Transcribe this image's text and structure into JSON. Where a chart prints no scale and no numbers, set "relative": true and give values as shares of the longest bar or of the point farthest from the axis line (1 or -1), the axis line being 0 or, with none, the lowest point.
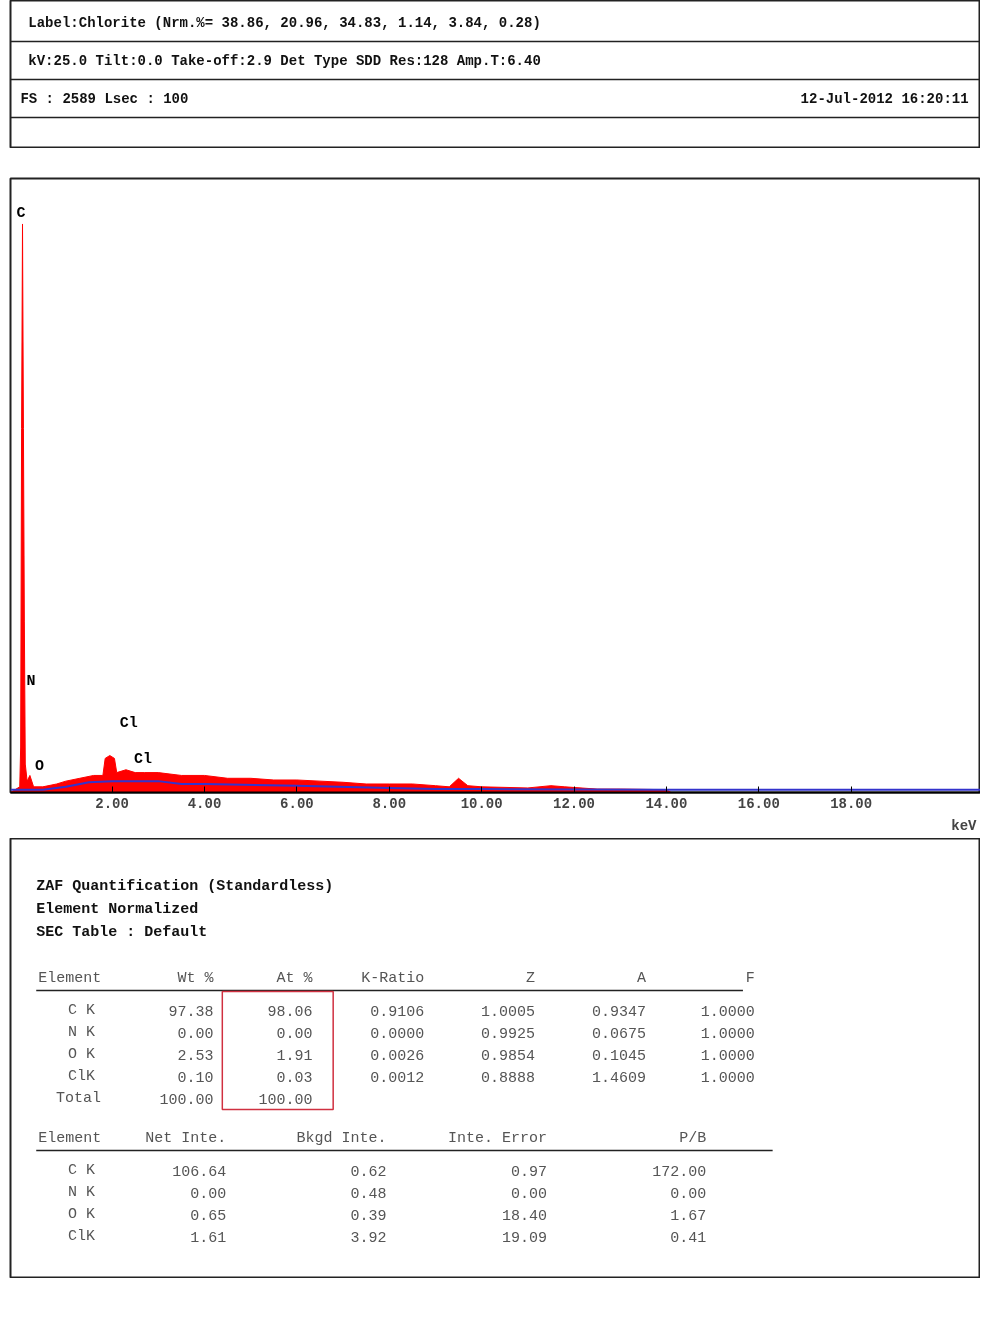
{
  "chart_data": {
    "type": "area",
    "relative": true,
    "title": "Label:Chlorite (Nrm.%= 38.86, 20.96, 34.83, 1.14, 3.84, 0.28)",
    "subtitle": "kV:25.0 Tilt:0.0 Take-off:2.9  Det Type SDD Res:128 Amp.T:6.40",
    "xlabel": "keV",
    "xlim": [
      -0.2,
      20.8
    ],
    "xticks": [
      {
        "value": 2,
        "label": "2.00"
      },
      {
        "value": 4,
        "label": "4.00"
      },
      {
        "value": 6,
        "label": "6.00"
      },
      {
        "value": 8,
        "label": "8.00"
      },
      {
        "value": 10,
        "label": "10.00"
      },
      {
        "value": 12,
        "label": "12.00"
      },
      {
        "value": 14,
        "label": "14.00"
      },
      {
        "value": 16,
        "label": "16.00"
      },
      {
        "value": 18,
        "label": "18.00"
      }
    ],
    "grid": false,
    "series": [
      {
        "color": "#ff0000",
        "x": [
          -0.2,
          0,
          0.02,
          0.04,
          0.06,
          0.08,
          0.1,
          0.12,
          0.16,
          0.22,
          0.3,
          0.5,
          0.8,
          1.0,
          1.3,
          1.6,
          1.8,
          1.85,
          1.95,
          2.05,
          2.1,
          2.3,
          2.5,
          2.7,
          3.0,
          3.5,
          4.0,
          4.5,
          5.0,
          5.5,
          6.0,
          6.5,
          7.0,
          7.5,
          8.0,
          8.5,
          9.0,
          9.3,
          9.5,
          9.7,
          10.0,
          11.0,
          11.5,
          11.8,
          12.5,
          13.0,
          14.0,
          14.1
        ],
        "values": [
          0,
          0.01,
          0.08,
          0.64,
          1.0,
          0.64,
          0.3,
          0.05,
          0.02,
          0.03,
          0.01,
          0.01,
          0.015,
          0.02,
          0.025,
          0.03,
          0.03,
          0.06,
          0.065,
          0.06,
          0.035,
          0.04,
          0.035,
          0.035,
          0.035,
          0.03,
          0.03,
          0.025,
          0.025,
          0.022,
          0.022,
          0.02,
          0.018,
          0.015,
          0.015,
          0.015,
          0.012,
          0.01,
          0.025,
          0.012,
          0.01,
          0.008,
          0.012,
          0.01,
          0.006,
          0.006,
          0.005,
          0
        ]
      },
      {
        "type": "line",
        "color": "#3333cc",
        "x": [
          -0.2,
          0,
          0.5,
          1.0,
          1.5,
          2.0,
          3.0,
          3.5,
          4.0,
          6.0,
          8.0,
          9.0,
          10.0,
          14.0,
          20.8
        ],
        "values": [
          0.005,
          0.005,
          0.005,
          0.01,
          0.018,
          0.02,
          0.02,
          0.015,
          0.015,
          0.012,
          0.008,
          0.006,
          0.006,
          0.005,
          0.005
        ]
      }
    ],
    "annotations": [
      "FS : 2589  Lsec : 100",
      "12-Jul-2012 16:20:11",
      {
        "text": "C",
        "x": 0.06,
        "y": 1.0
      },
      {
        "text": "N",
        "x": 0.06,
        "y": 0.18
      },
      {
        "text": "O",
        "x": 0.2,
        "y": 0.03
      },
      {
        "text": "Cl",
        "x": 1.95,
        "y": 0.065
      },
      {
        "text": "Cl",
        "x": 2.3,
        "y": 0.04
      },
      "ZAF Quantification (Standardless)",
      "Element Normalized",
      "SEC Table : Default",
      "Element",
      "Wt %",
      "At %",
      "K-Ratio",
      "Z",
      "A",
      "F",
      "C K",
      "97.38",
      "98.06",
      "0.9106",
      "1.0005",
      "0.9347",
      "1.0000",
      "N K",
      "0.00",
      "0.00",
      "0.0000",
      "0.9925",
      "0.0675",
      "1.0000",
      "O K",
      "2.53",
      "1.91",
      "0.0026",
      "0.9854",
      "0.1045",
      "1.0000",
      "ClK",
      "0.10",
      "0.03",
      "0.0012",
      "0.8888",
      "1.4609",
      "1.0000",
      "Total",
      "100.00",
      "100.00",
      "Element",
      "Net Inte.",
      "Bkgd Inte.",
      "Inte. Error",
      "P/B",
      "C K",
      "106.64",
      "0.62",
      "0.97",
      "172.00",
      "N K",
      "0.00",
      "0.48",
      "0.00",
      "0.00",
      "O K",
      "0.65",
      "0.39",
      "18.40",
      "1.67",
      "ClK",
      "1.61",
      "3.92",
      "19.09",
      "0.41"
    ]
  }
}
